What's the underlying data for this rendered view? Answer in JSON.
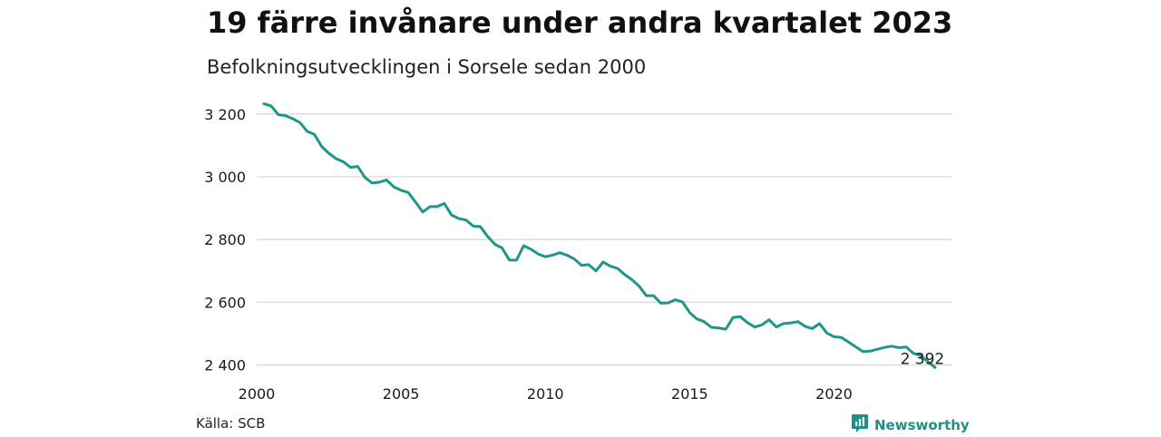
{
  "title": "19 färre invånare under andra kvartalet 2023",
  "subtitle": "Befolkningsutvecklingen i Sorsele sedan 2000",
  "source": "Källa: SCB",
  "brand": {
    "name": "Newsworthy",
    "icon": "newsworthy-logo-icon"
  },
  "colors": {
    "line": "#1f968a",
    "grid": "#d9d9d9",
    "text": "#1a1a1a"
  },
  "chart_data": {
    "type": "line",
    "title": "19 färre invånare under andra kvartalet 2023",
    "subtitle": "Befolkningsutvecklingen i Sorsele sedan 2000",
    "xlabel": "",
    "ylabel": "",
    "xlim": [
      2000,
      2024.1
    ],
    "ylim": [
      2390,
      3240
    ],
    "x_ticks": [
      2000,
      2005,
      2010,
      2015,
      2020
    ],
    "x_tick_labels": [
      "2000",
      "2005",
      "2010",
      "2015",
      "2020"
    ],
    "y_ticks": [
      2400,
      2600,
      2800,
      3000,
      3200
    ],
    "y_tick_labels": [
      "2 400",
      "2 600",
      "2 800",
      "3 000",
      "3 200"
    ],
    "grid": "horizontal",
    "end_label": "2 392",
    "series": [
      {
        "x": [
          2000.25,
          2000.5,
          2000.75,
          2001.0,
          2001.25,
          2001.5,
          2001.75,
          2002.0,
          2002.25,
          2002.5,
          2002.75,
          2003.0,
          2003.25,
          2003.5,
          2003.75,
          2004.0,
          2004.25,
          2004.5,
          2004.75,
          2005.0,
          2005.25,
          2005.5,
          2005.75,
          2006.0,
          2006.25,
          2006.5,
          2006.75,
          2007.0,
          2007.25,
          2007.5,
          2007.75,
          2008.0,
          2008.25,
          2008.5,
          2008.75,
          2009.0,
          2009.25,
          2009.5,
          2009.75,
          2010.0,
          2010.25,
          2010.5,
          2010.75,
          2011.0,
          2011.25,
          2011.5,
          2011.75,
          2012.0,
          2012.25,
          2012.5,
          2012.75,
          2013.0,
          2013.25,
          2013.5,
          2013.75,
          2014.0,
          2014.25,
          2014.5,
          2014.75,
          2015.0,
          2015.25,
          2015.5,
          2015.75,
          2016.0,
          2016.25,
          2016.5,
          2016.75,
          2017.0,
          2017.25,
          2017.5,
          2017.75,
          2018.0,
          2018.25,
          2018.5,
          2018.75,
          2019.0,
          2019.25,
          2019.5,
          2019.75,
          2020.0,
          2020.25,
          2020.5,
          2020.75,
          2021.0,
          2021.25,
          2021.5,
          2021.75,
          2022.0,
          2022.25,
          2022.5,
          2022.75,
          2023.0,
          2023.25,
          2023.5
        ],
        "values": [
          3233,
          3226,
          3198,
          3195,
          3185,
          3173,
          3145,
          3135,
          3097,
          3075,
          3058,
          3048,
          3030,
          3033,
          2998,
          2980,
          2983,
          2990,
          2968,
          2957,
          2950,
          2920,
          2888,
          2905,
          2905,
          2915,
          2878,
          2867,
          2862,
          2843,
          2841,
          2810,
          2785,
          2773,
          2735,
          2734,
          2780,
          2769,
          2754,
          2745,
          2750,
          2758,
          2750,
          2738,
          2718,
          2720,
          2700,
          2728,
          2715,
          2708,
          2688,
          2672,
          2651,
          2621,
          2621,
          2597,
          2598,
          2608,
          2601,
          2567,
          2547,
          2538,
          2520,
          2518,
          2514,
          2551,
          2554,
          2535,
          2521,
          2528,
          2544,
          2521,
          2532,
          2534,
          2538,
          2523,
          2516,
          2532,
          2502,
          2490,
          2488,
          2473,
          2458,
          2443,
          2444,
          2450,
          2456,
          2460,
          2455,
          2457,
          2437,
          2430,
          2411,
          2392
        ]
      }
    ]
  }
}
